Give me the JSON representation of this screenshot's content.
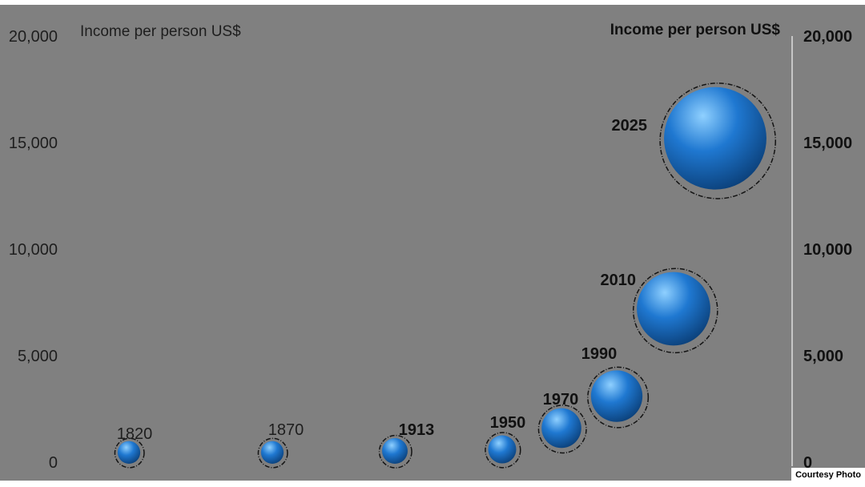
{
  "chart_data": {
    "type": "scatter",
    "title": "",
    "ylabel_left": "Income per person US$",
    "ylabel_right": "Income per person US$",
    "ylim": [
      0,
      20000
    ],
    "yticks": [
      0,
      5000,
      10000,
      15000,
      20000
    ],
    "ytick_labels": [
      "0",
      "5,000",
      "10,000",
      "15,000",
      "20,000"
    ],
    "grid": false,
    "legend": "none",
    "series": [
      {
        "points": [
          {
            "label": "1820",
            "x": 1820,
            "y": 300
          },
          {
            "label": "1870",
            "x": 1870,
            "y": 300
          },
          {
            "label": "1913",
            "x": 1913,
            "y": 450
          },
          {
            "label": "1950",
            "x": 1950,
            "y": 600
          },
          {
            "label": "1970",
            "x": 1970,
            "y": 1600
          },
          {
            "label": "1990",
            "x": 1990,
            "y": 3100
          },
          {
            "label": "2010",
            "x": 2010,
            "y": 7200
          },
          {
            "label": "2025",
            "x": 2025,
            "y": 15200
          }
        ]
      }
    ],
    "colors": {
      "plot_background": "#808080",
      "bubble": "#1f78d1",
      "bubble_highlight": "#8fd0ff",
      "bubble_shadow": "#0b3f78",
      "ring": "#141414",
      "right_axis_line": "#c6c6c6"
    }
  },
  "credit": "Courtesy Photo"
}
